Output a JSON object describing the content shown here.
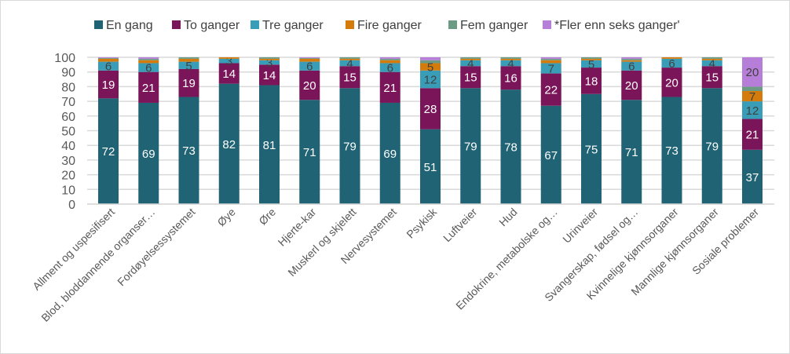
{
  "chart_data": {
    "type": "bar",
    "stacked": true,
    "categories": [
      "Allment og uspesifisert",
      "Blod, bloddannende organser…",
      "Fordøyelsessystemet",
      "Øye",
      "Øre",
      "Hjerte-kar",
      "Muskerl og skjelett",
      "Nervesystemet",
      "Psykisk",
      "Luftveier",
      "Hud",
      "Endokrine, metabolske og…",
      "Urinveier",
      "Svangerskap, fødsel og…",
      "Kvinnelige kjønnsorganer",
      "Mannlige kjønnsorganer",
      "Sosiale problemer"
    ],
    "series": [
      {
        "name": "En gang",
        "color": "#1f6374",
        "label_color": "#ffffff",
        "values": [
          72,
          69,
          73,
          82,
          81,
          71,
          79,
          69,
          51,
          79,
          78,
          67,
          75,
          71,
          73,
          79,
          37
        ]
      },
      {
        "name": "To ganger",
        "color": "#7b1559",
        "label_color": "#ffffff",
        "values": [
          19,
          21,
          19,
          14,
          14,
          20,
          15,
          21,
          28,
          15,
          16,
          22,
          18,
          20,
          20,
          15,
          21
        ]
      },
      {
        "name": "Tre ganger",
        "color": "#3a9db8",
        "label_color": "#404040",
        "values": [
          6,
          6,
          5,
          3,
          3,
          6,
          4,
          6,
          12,
          4,
          4,
          7,
          5,
          6,
          6,
          4,
          12
        ]
      },
      {
        "name": "Fire ganger",
        "color": "#d47b0b",
        "label_color": "#404040",
        "values": [
          2,
          2,
          2,
          1,
          1,
          2,
          1,
          2,
          5,
          1,
          1,
          2,
          1,
          1,
          1,
          1,
          7
        ]
      },
      {
        "name": "Fem ganger",
        "color": "#6b9a85",
        "label_color": "#404040",
        "values": [
          0.5,
          1,
          1,
          0,
          1,
          0.5,
          1,
          1,
          2,
          1,
          1,
          1,
          1,
          1,
          0,
          1,
          3
        ]
      },
      {
        "name": "*Fler enn seks ganger'",
        "color": "#b77ed9",
        "label_color": "#404040",
        "values": [
          0.5,
          1,
          0,
          0,
          0,
          0.5,
          0,
          1,
          2,
          0,
          0,
          1,
          0,
          1,
          0,
          0,
          20
        ]
      }
    ],
    "data_labels_shown": [
      [
        true,
        true,
        true,
        true,
        true,
        true,
        true,
        true,
        true,
        true,
        true,
        true,
        true,
        true,
        true,
        true,
        true
      ],
      [
        true,
        true,
        true,
        true,
        true,
        true,
        true,
        true,
        true,
        true,
        true,
        true,
        true,
        true,
        true,
        true,
        true
      ],
      [
        true,
        true,
        true,
        true,
        true,
        true,
        true,
        true,
        true,
        true,
        true,
        true,
        true,
        true,
        true,
        true,
        true
      ],
      [
        false,
        false,
        false,
        false,
        false,
        false,
        false,
        false,
        true,
        false,
        false,
        false,
        false,
        false,
        false,
        false,
        true
      ],
      [
        false,
        false,
        false,
        false,
        false,
        false,
        false,
        false,
        false,
        false,
        false,
        false,
        false,
        false,
        false,
        false,
        false
      ],
      [
        false,
        false,
        false,
        false,
        false,
        false,
        false,
        false,
        false,
        false,
        false,
        false,
        false,
        false,
        false,
        false,
        true
      ]
    ],
    "yticks": [
      0,
      10,
      20,
      30,
      40,
      50,
      60,
      70,
      80,
      90,
      100
    ],
    "ylim": [
      0,
      100
    ],
    "grid": true,
    "legend": "top",
    "title": "",
    "xlabel": "",
    "ylabel": ""
  }
}
